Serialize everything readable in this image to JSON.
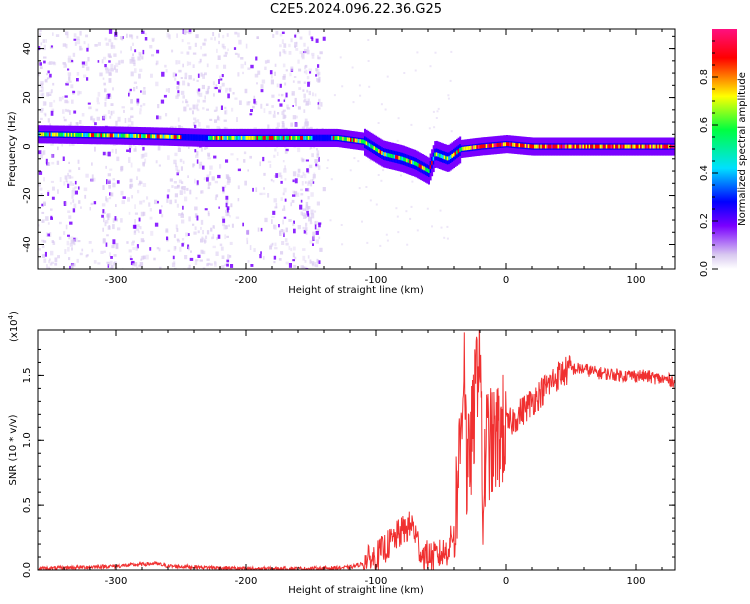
{
  "title": "C2E5.2024.096.22.36.G25",
  "chart_data": [
    {
      "type": "heatmap",
      "xlabel": "Height of straight line (km)",
      "ylabel": "Frequency (Hz)",
      "xlim": [
        -360,
        130
      ],
      "ylim": [
        -50,
        48
      ],
      "xticks": [
        -300,
        -200,
        -100,
        0,
        100
      ],
      "yticks": [
        -40,
        -20,
        0,
        20,
        40
      ],
      "colorbar": {
        "label": "Normalized spectral amplitude",
        "range": [
          0.0,
          1.0
        ],
        "ticks": [
          "0.0",
          "0.2",
          "0.4",
          "0.6",
          "0.8"
        ],
        "colormap": [
          "#d8c8f0",
          "#7a00ff",
          "#0000ff",
          "#00e0ff",
          "#00ff40",
          "#ffff00",
          "#ff0000",
          "#ff1080"
        ]
      },
      "ridge": [
        {
          "x": -360,
          "y": 5
        },
        {
          "x": -300,
          "y": 4.5
        },
        {
          "x": -260,
          "y": 4
        },
        {
          "x": -230,
          "y": 3.5
        },
        {
          "x": -200,
          "y": 3.5
        },
        {
          "x": -150,
          "y": 3.5
        },
        {
          "x": -130,
          "y": 3.5
        },
        {
          "x": -110,
          "y": 2
        },
        {
          "x": -95,
          "y": -3
        },
        {
          "x": -80,
          "y": -5
        },
        {
          "x": -70,
          "y": -7
        },
        {
          "x": -60,
          "y": -10
        },
        {
          "x": -55,
          "y": -3
        },
        {
          "x": -45,
          "y": -5
        },
        {
          "x": -35,
          "y": -1
        },
        {
          "x": -20,
          "y": 0
        },
        {
          "x": 0,
          "y": 1
        },
        {
          "x": 20,
          "y": 0
        },
        {
          "x": 60,
          "y": 0
        },
        {
          "x": 100,
          "y": 0
        },
        {
          "x": 130,
          "y": 0
        }
      ]
    },
    {
      "type": "line",
      "xlabel": "Height of straight line (km)",
      "ylabel": "SNR (10 * v/v)",
      "yscale_label": "(x10",
      "yscale_exp": "4",
      "yscale_close": ")",
      "xlim": [
        -360,
        130
      ],
      "ylim": [
        0,
        1.85
      ],
      "xticks": [
        -300,
        -200,
        -100,
        0,
        100
      ],
      "yticks": [
        "0.0",
        "0.5",
        "1.0",
        "1.5"
      ],
      "ytick_values": [
        0,
        0.5,
        1.0,
        1.5
      ],
      "series": [
        {
          "color": "#f03030",
          "points": [
            [
              -360,
              0.01
            ],
            [
              -330,
              0.02
            ],
            [
              -300,
              0.03
            ],
            [
              -270,
              0.05
            ],
            [
              -260,
              0.03
            ],
            [
              -230,
              0.02
            ],
            [
              -200,
              0.01
            ],
            [
              -170,
              0.01
            ],
            [
              -150,
              0.01
            ],
            [
              -120,
              0.02
            ],
            [
              -110,
              0.05
            ],
            [
              -100,
              0.1
            ],
            [
              -90,
              0.2
            ],
            [
              -80,
              0.3
            ],
            [
              -72,
              0.35
            ],
            [
              -65,
              0.12
            ],
            [
              -55,
              0.1
            ],
            [
              -45,
              0.15
            ],
            [
              -40,
              0.3
            ],
            [
              -35,
              1.0
            ],
            [
              -32,
              1.75
            ],
            [
              -30,
              0.6
            ],
            [
              -28,
              0.9
            ],
            [
              -25,
              1.1
            ],
            [
              -22,
              1.6
            ],
            [
              -20,
              1.85
            ],
            [
              -18,
              0.4
            ],
            [
              -15,
              1.0
            ],
            [
              -10,
              0.95
            ],
            [
              -5,
              1.05
            ],
            [
              0,
              1.1
            ],
            [
              10,
              1.2
            ],
            [
              20,
              1.3
            ],
            [
              30,
              1.4
            ],
            [
              40,
              1.5
            ],
            [
              50,
              1.55
            ],
            [
              60,
              1.55
            ],
            [
              70,
              1.52
            ],
            [
              80,
              1.51
            ],
            [
              90,
              1.5
            ],
            [
              100,
              1.5
            ],
            [
              110,
              1.49
            ],
            [
              120,
              1.47
            ],
            [
              130,
              1.46
            ]
          ]
        }
      ]
    }
  ]
}
